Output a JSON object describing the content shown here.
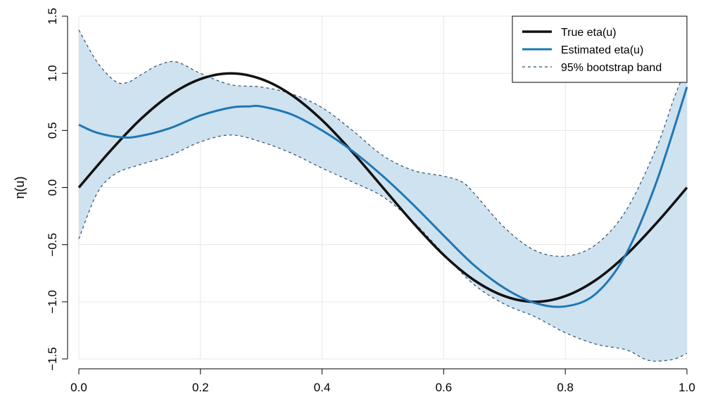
{
  "chart_data": {
    "type": "line",
    "xlabel": "",
    "ylabel": "η(u)",
    "xlim": [
      0,
      1
    ],
    "ylim": [
      -1.5,
      1.5
    ],
    "x_ticks": [
      "0.0",
      "0.2",
      "0.4",
      "0.6",
      "0.8",
      "1.0"
    ],
    "y_ticks": [
      "−1.5",
      "−1.0",
      "−0.5",
      "0.0",
      "0.5",
      "1.0",
      "1.5"
    ],
    "grid": true,
    "legend_position": "top-right",
    "colors": {
      "true": "#111111",
      "estimated": "#1f77b4",
      "band_line": "#2f4f6f",
      "band_fill": "#cfe2f0",
      "grid": "#e6e6e6"
    },
    "legend": [
      {
        "label": "True eta(u)",
        "style": "solid-black"
      },
      {
        "label": "Estimated eta(u)",
        "style": "solid-blue"
      },
      {
        "label": "95% bootstrap band",
        "style": "dashed"
      }
    ],
    "series": [
      {
        "name": "True eta(u)",
        "x": [
          0.0,
          0.05,
          0.1,
          0.15,
          0.2,
          0.25,
          0.3,
          0.35,
          0.4,
          0.45,
          0.5,
          0.55,
          0.6,
          0.65,
          0.7,
          0.75,
          0.8,
          0.85,
          0.9,
          0.95,
          1.0
        ],
        "y": [
          0.0,
          0.31,
          0.59,
          0.81,
          0.95,
          1.0,
          0.95,
          0.81,
          0.59,
          0.31,
          0.0,
          -0.31,
          -0.59,
          -0.81,
          -0.95,
          -1.0,
          -0.95,
          -0.81,
          -0.59,
          -0.31,
          0.0
        ]
      },
      {
        "name": "Estimated eta(u)",
        "x": [
          0.0,
          0.03,
          0.07,
          0.1,
          0.15,
          0.2,
          0.25,
          0.28,
          0.3,
          0.35,
          0.4,
          0.45,
          0.5,
          0.55,
          0.6,
          0.65,
          0.7,
          0.75,
          0.8,
          0.85,
          0.9,
          0.95,
          1.0
        ],
        "y": [
          0.55,
          0.48,
          0.44,
          0.45,
          0.52,
          0.63,
          0.7,
          0.71,
          0.71,
          0.64,
          0.5,
          0.32,
          0.1,
          -0.15,
          -0.42,
          -0.68,
          -0.88,
          -1.01,
          -1.04,
          -0.93,
          -0.58,
          0.05,
          0.88
        ]
      },
      {
        "name": "Upper band",
        "x": [
          0.0,
          0.03,
          0.06,
          0.08,
          0.1,
          0.13,
          0.16,
          0.2,
          0.25,
          0.3,
          0.35,
          0.4,
          0.45,
          0.5,
          0.55,
          0.6,
          0.63,
          0.65,
          0.7,
          0.75,
          0.8,
          0.85,
          0.9,
          0.95,
          0.98,
          1.0
        ],
        "y": [
          1.38,
          1.1,
          0.93,
          0.92,
          0.98,
          1.07,
          1.1,
          1.0,
          0.9,
          0.88,
          0.82,
          0.7,
          0.5,
          0.28,
          0.15,
          0.1,
          0.05,
          -0.05,
          -0.35,
          -0.55,
          -0.6,
          -0.5,
          -0.2,
          0.35,
          0.8,
          1.05
        ]
      },
      {
        "name": "Lower band",
        "x": [
          0.0,
          0.03,
          0.06,
          0.1,
          0.15,
          0.2,
          0.25,
          0.3,
          0.35,
          0.4,
          0.45,
          0.5,
          0.55,
          0.6,
          0.65,
          0.7,
          0.75,
          0.8,
          0.85,
          0.9,
          0.93,
          0.95,
          0.98,
          1.0
        ],
        "y": [
          -0.45,
          -0.05,
          0.12,
          0.2,
          0.28,
          0.4,
          0.46,
          0.4,
          0.3,
          0.17,
          0.05,
          -0.08,
          -0.3,
          -0.58,
          -0.85,
          -1.02,
          -1.13,
          -1.27,
          -1.37,
          -1.42,
          -1.5,
          -1.52,
          -1.5,
          -1.45
        ]
      }
    ]
  }
}
